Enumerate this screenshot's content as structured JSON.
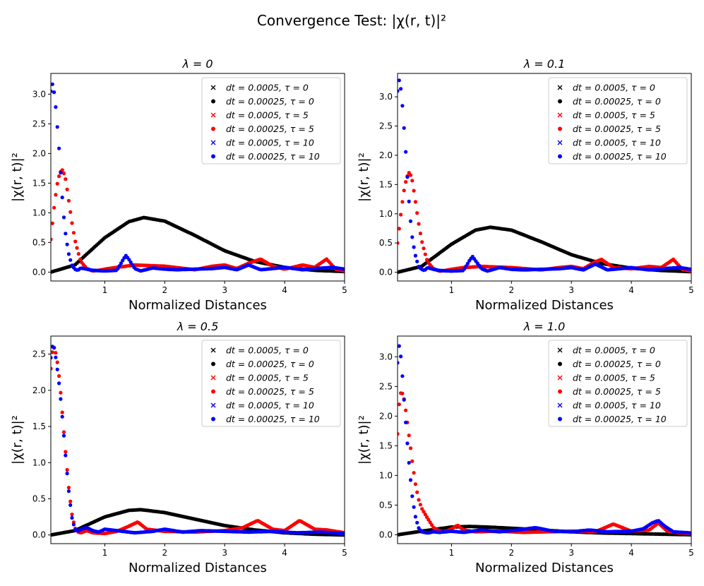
{
  "figure_title": "Convergence Test: |χ(r, t)|²",
  "colors": {
    "tau0": "#000000",
    "tau5": "#ff0000",
    "tau10": "#0000ff",
    "axis": "#000000",
    "legend_border": "#cccccc"
  },
  "chart_data": [
    {
      "type": "scatter",
      "title": "λ = 0",
      "xlabel": "Normalized Distances",
      "ylabel": "|χ(r, t)|²",
      "xlim": [
        0.1,
        5
      ],
      "ylim": [
        -0.15,
        3.35
      ],
      "xticks": [
        "1",
        "2",
        "3",
        "4",
        "5"
      ],
      "yticks": [
        "0.0",
        "0.5",
        "1.0",
        "1.5",
        "2.0",
        "2.5",
        "3.0"
      ],
      "legend_position": "top-right",
      "legend": [
        "dt = 0.0005,  τ = 0",
        "dt = 0.00025,  τ = 0",
        "dt = 0.0005,  τ = 5",
        "dt = 0.00025,  τ = 5",
        "dt = 0.0005,  τ = 10",
        "dt = 0.00025,  τ = 10"
      ],
      "series": [
        {
          "name": "τ = 0",
          "color": "#000000",
          "x": [
            0.1,
            0.5,
            1.0,
            1.4,
            1.65,
            2.0,
            2.5,
            3.0,
            3.5,
            4.0,
            4.5,
            5.0
          ],
          "y": [
            0.0,
            0.12,
            0.58,
            0.85,
            0.92,
            0.86,
            0.62,
            0.36,
            0.18,
            0.08,
            0.03,
            0.01
          ]
        },
        {
          "name": "τ = 5",
          "color": "#ff0000",
          "x": [
            0.1,
            0.15,
            0.2,
            0.25,
            0.3,
            0.35,
            0.4,
            0.45,
            0.5,
            0.55,
            0.6,
            0.7,
            0.8,
            0.9,
            1.0,
            1.2,
            1.5,
            2.0,
            2.5,
            2.8,
            3.0,
            3.2,
            3.4,
            3.6,
            3.8,
            4.0,
            4.3,
            4.5,
            4.7,
            4.85,
            5.0
          ],
          "y": [
            0.55,
            1.05,
            1.45,
            1.68,
            1.73,
            1.55,
            1.2,
            0.85,
            0.55,
            0.35,
            0.18,
            0.06,
            0.02,
            0.03,
            0.05,
            0.08,
            0.12,
            0.1,
            0.04,
            0.1,
            0.12,
            0.06,
            0.15,
            0.22,
            0.1,
            0.05,
            0.12,
            0.08,
            0.22,
            0.05,
            0.02
          ]
        },
        {
          "name": "τ = 10",
          "color": "#0000ff",
          "x": [
            0.1,
            0.13,
            0.16,
            0.19,
            0.22,
            0.25,
            0.28,
            0.31,
            0.35,
            0.4,
            0.45,
            0.5,
            0.55,
            0.6,
            0.7,
            0.8,
            1.0,
            1.2,
            1.3,
            1.35,
            1.4,
            1.5,
            1.6,
            1.8,
            2.0,
            2.2,
            2.5,
            2.8,
            3.0,
            3.2,
            3.4,
            3.6,
            3.8,
            4.0,
            4.3,
            4.5,
            4.8,
            5.0
          ],
          "y": [
            3.05,
            3.18,
            3.0,
            2.7,
            2.3,
            1.9,
            1.4,
            1.0,
            0.6,
            0.3,
            0.12,
            0.05,
            0.03,
            0.07,
            0.05,
            0.03,
            0.02,
            0.03,
            0.2,
            0.28,
            0.22,
            0.06,
            0.02,
            0.07,
            0.05,
            0.04,
            0.05,
            0.06,
            0.08,
            0.04,
            0.12,
            0.04,
            0.06,
            0.08,
            0.04,
            0.06,
            0.08,
            0.05
          ]
        }
      ]
    },
    {
      "type": "scatter",
      "title": "λ = 0.1",
      "xlabel": "Normalized Distances",
      "ylabel": "|χ(r, t)|²",
      "xlim": [
        0.1,
        5
      ],
      "ylim": [
        -0.15,
        3.4
      ],
      "xticks": [
        "1",
        "2",
        "3",
        "4",
        "5"
      ],
      "yticks": [
        "0.0",
        "0.5",
        "1.0",
        "1.5",
        "2.0",
        "2.5",
        "3.0"
      ],
      "legend_position": "top-right",
      "legend": [
        "dt = 0.0005,  τ = 0",
        "dt = 0.00025,  τ = 0",
        "dt = 0.0005,  τ = 5",
        "dt = 0.00025,  τ = 5",
        "dt = 0.0005,  τ = 10",
        "dt = 0.00025,  τ = 10"
      ],
      "series": [
        {
          "name": "τ = 0",
          "color": "#000000",
          "x": [
            0.1,
            0.5,
            1.0,
            1.4,
            1.65,
            2.0,
            2.5,
            3.0,
            3.5,
            4.0,
            4.5,
            5.0
          ],
          "y": [
            0.0,
            0.1,
            0.48,
            0.72,
            0.77,
            0.72,
            0.52,
            0.3,
            0.15,
            0.07,
            0.03,
            0.01
          ]
        },
        {
          "name": "τ = 5",
          "color": "#ff0000",
          "x": [
            0.1,
            0.15,
            0.2,
            0.25,
            0.3,
            0.35,
            0.4,
            0.45,
            0.5,
            0.55,
            0.6,
            0.7,
            0.8,
            0.9,
            1.0,
            1.2,
            1.5,
            2.0,
            2.5,
            2.8,
            3.0,
            3.2,
            3.4,
            3.5,
            3.7,
            4.0,
            4.3,
            4.5,
            4.7,
            4.85,
            5.0
          ],
          "y": [
            0.5,
            0.95,
            1.35,
            1.62,
            1.72,
            1.55,
            1.2,
            0.85,
            0.55,
            0.35,
            0.18,
            0.06,
            0.02,
            0.03,
            0.05,
            0.08,
            0.1,
            0.08,
            0.04,
            0.08,
            0.1,
            0.06,
            0.18,
            0.22,
            0.08,
            0.06,
            0.1,
            0.08,
            0.22,
            0.05,
            0.02
          ]
        },
        {
          "name": "τ = 10",
          "color": "#0000ff",
          "x": [
            0.1,
            0.13,
            0.16,
            0.19,
            0.22,
            0.25,
            0.28,
            0.31,
            0.35,
            0.4,
            0.45,
            0.5,
            0.55,
            0.6,
            0.7,
            0.8,
            1.0,
            1.2,
            1.3,
            1.35,
            1.4,
            1.5,
            1.6,
            1.8,
            2.0,
            2.2,
            2.5,
            2.8,
            3.0,
            3.2,
            3.4,
            3.6,
            3.8,
            4.0,
            4.3,
            4.5,
            4.8,
            5.0
          ],
          "y": [
            3.1,
            3.3,
            3.1,
            2.75,
            2.3,
            1.85,
            1.35,
            0.95,
            0.55,
            0.28,
            0.1,
            0.05,
            0.03,
            0.08,
            0.05,
            0.03,
            0.02,
            0.03,
            0.2,
            0.27,
            0.2,
            0.06,
            0.02,
            0.08,
            0.05,
            0.04,
            0.05,
            0.06,
            0.08,
            0.04,
            0.14,
            0.04,
            0.06,
            0.08,
            0.04,
            0.06,
            0.08,
            0.05
          ]
        }
      ]
    },
    {
      "type": "scatter",
      "title": "λ = 0.5",
      "xlabel": "Normalized Distances",
      "ylabel": "|χ(r, t)|²",
      "xlim": [
        0.1,
        5
      ],
      "ylim": [
        -0.12,
        2.75
      ],
      "xticks": [
        "1",
        "2",
        "3",
        "4",
        "5"
      ],
      "yticks": [
        "0.0",
        "0.5",
        "1.0",
        "1.5",
        "2.0",
        "2.5"
      ],
      "legend_position": "top-right",
      "legend": [
        "dt = 0.0005,  τ = 0",
        "dt = 0.00025,  τ = 0",
        "dt = 0.0005,  τ = 5",
        "dt = 0.00025,  τ = 5",
        "dt = 0.0005,  τ = 10",
        "dt = 0.00025,  τ = 10"
      ],
      "series": [
        {
          "name": "τ = 0",
          "color": "#000000",
          "x": [
            0.1,
            0.5,
            1.0,
            1.4,
            1.6,
            2.0,
            2.5,
            3.0,
            3.5,
            4.0,
            4.5,
            5.0
          ],
          "y": [
            0.0,
            0.06,
            0.25,
            0.34,
            0.35,
            0.31,
            0.22,
            0.13,
            0.07,
            0.03,
            0.01,
            0.0
          ]
        },
        {
          "name": "τ = 5",
          "color": "#ff0000",
          "x": [
            0.1,
            0.13,
            0.16,
            0.2,
            0.25,
            0.3,
            0.35,
            0.4,
            0.45,
            0.5,
            0.55,
            0.6,
            0.7,
            0.8,
            1.0,
            1.2,
            1.4,
            1.55,
            1.7,
            2.0,
            2.5,
            3.0,
            3.3,
            3.55,
            3.8,
            4.0,
            4.25,
            4.5,
            4.7,
            4.85,
            5.0
          ],
          "y": [
            2.3,
            2.55,
            2.6,
            2.45,
            2.1,
            1.6,
            1.1,
            0.65,
            0.3,
            0.1,
            0.04,
            0.03,
            0.06,
            0.03,
            0.02,
            0.05,
            0.12,
            0.18,
            0.08,
            0.05,
            0.04,
            0.06,
            0.1,
            0.2,
            0.08,
            0.06,
            0.2,
            0.08,
            0.07,
            0.05,
            0.03
          ]
        },
        {
          "name": "τ = 10",
          "color": "#0000ff",
          "x": [
            0.1,
            0.13,
            0.16,
            0.2,
            0.25,
            0.3,
            0.35,
            0.4,
            0.45,
            0.5,
            0.55,
            0.6,
            0.7,
            0.8,
            0.9,
            1.0,
            1.2,
            1.5,
            1.8,
            2.0,
            2.3,
            2.6,
            3.0,
            3.4,
            3.8,
            4.2,
            4.6,
            5.0
          ],
          "y": [
            2.45,
            2.62,
            2.58,
            2.35,
            2.0,
            1.55,
            1.05,
            0.6,
            0.25,
            0.08,
            0.05,
            0.08,
            0.1,
            0.06,
            0.04,
            0.08,
            0.06,
            0.03,
            0.05,
            0.08,
            0.04,
            0.06,
            0.05,
            0.04,
            0.05,
            0.03,
            0.04,
            0.02
          ]
        }
      ]
    },
    {
      "type": "scatter",
      "title": "λ = 1.0",
      "xlabel": "Normalized Distances",
      "ylabel": "|χ(r, t)|²",
      "xlim": [
        0.1,
        5
      ],
      "ylim": [
        -0.15,
        3.35
      ],
      "xticks": [
        "1",
        "2",
        "3",
        "4",
        "5"
      ],
      "yticks": [
        "0.0",
        "0.5",
        "1.0",
        "1.5",
        "2.0",
        "2.5",
        "3.0"
      ],
      "legend_position": "top-right",
      "legend": [
        "dt = 0.0005,  τ = 0",
        "dt = 0.00025,  τ = 0",
        "dt = 0.0005,  τ = 5",
        "dt = 0.00025,  τ = 5",
        "dt = 0.0005,  τ = 10",
        "dt = 0.00025,  τ = 10"
      ],
      "series": [
        {
          "name": "τ = 0",
          "color": "#000000",
          "x": [
            0.1,
            0.5,
            1.0,
            1.3,
            1.6,
            2.0,
            2.5,
            3.0,
            3.5,
            4.0,
            4.5,
            5.0
          ],
          "y": [
            0.0,
            0.06,
            0.13,
            0.14,
            0.13,
            0.11,
            0.08,
            0.05,
            0.03,
            0.02,
            0.01,
            0.0
          ]
        },
        {
          "name": "τ = 5",
          "color": "#ff0000",
          "x": [
            0.1,
            0.13,
            0.16,
            0.2,
            0.25,
            0.3,
            0.35,
            0.4,
            0.45,
            0.5,
            0.6,
            0.7,
            0.8,
            0.9,
            1.0,
            1.1,
            1.2,
            1.4,
            1.8,
            2.2,
            2.6,
            3.0,
            3.4,
            3.7,
            4.0,
            4.3,
            4.45,
            4.6,
            4.8,
            5.0
          ],
          "y": [
            1.7,
            2.25,
            2.42,
            2.35,
            2.0,
            1.6,
            1.2,
            0.85,
            0.6,
            0.45,
            0.28,
            0.12,
            0.06,
            0.05,
            0.1,
            0.16,
            0.08,
            0.05,
            0.06,
            0.04,
            0.05,
            0.06,
            0.05,
            0.18,
            0.06,
            0.08,
            0.2,
            0.06,
            0.03,
            0.02
          ]
        },
        {
          "name": "τ = 10",
          "color": "#0000ff",
          "x": [
            0.1,
            0.12,
            0.14,
            0.17,
            0.2,
            0.25,
            0.3,
            0.35,
            0.4,
            0.45,
            0.5,
            0.6,
            0.7,
            0.8,
            1.0,
            1.2,
            1.5,
            1.8,
            2.1,
            2.4,
            2.7,
            3.0,
            3.3,
            3.6,
            4.0,
            4.2,
            4.35,
            4.45,
            4.55,
            4.7,
            5.0
          ],
          "y": [
            2.9,
            3.2,
            3.15,
            2.85,
            2.4,
            1.7,
            1.1,
            0.6,
            0.3,
            0.12,
            0.05,
            0.03,
            0.05,
            0.04,
            0.06,
            0.04,
            0.08,
            0.05,
            0.08,
            0.12,
            0.06,
            0.05,
            0.08,
            0.05,
            0.06,
            0.1,
            0.2,
            0.24,
            0.15,
            0.05,
            0.03
          ]
        }
      ]
    }
  ]
}
